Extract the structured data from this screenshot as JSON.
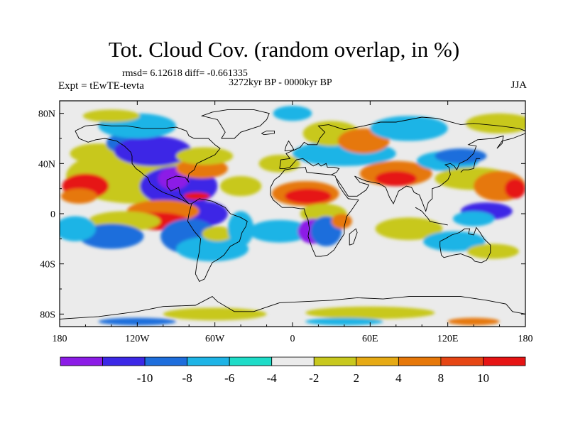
{
  "header": {
    "title": "Tot. Cloud Cov. (random overlap, in %)",
    "stats": "rmsd= 6.12618 diff= -0.661335",
    "period": "3272kyr BP - 0000kyr BP",
    "experiment": "Expt = tEwTE-tevta",
    "season": "JJA"
  },
  "map": {
    "projection": "cylindrical-equidistant",
    "lon_range": [
      -180,
      180
    ],
    "lat_range": [
      -90,
      90
    ],
    "x_ticks": [
      {
        "value": -180,
        "label": "180"
      },
      {
        "value": -120,
        "label": "120W"
      },
      {
        "value": -60,
        "label": "60W"
      },
      {
        "value": 0,
        "label": "0"
      },
      {
        "value": 60,
        "label": "60E"
      },
      {
        "value": 120,
        "label": "120E"
      },
      {
        "value": 180,
        "label": "180"
      }
    ],
    "y_ticks": [
      {
        "value": 80,
        "label": "80N"
      },
      {
        "value": 40,
        "label": "40N"
      },
      {
        "value": 0,
        "label": "0"
      },
      {
        "value": -40,
        "label": "40S"
      },
      {
        "value": -80,
        "label": "80S"
      }
    ],
    "background_color": "#ebebeb",
    "coastline_color": "#000000",
    "anomaly_regions": [
      {
        "lon": -120,
        "lat": 30,
        "rx": 55,
        "ry": 22,
        "level": "+4"
      },
      {
        "lon": -160,
        "lat": 22,
        "rx": 18,
        "ry": 10,
        "level": "+10"
      },
      {
        "lon": -165,
        "lat": 14,
        "rx": 14,
        "ry": 6,
        "level": "+8"
      },
      {
        "lon": -150,
        "lat": 48,
        "rx": 22,
        "ry": 8,
        "level": "+4"
      },
      {
        "lon": -130,
        "lat": 56,
        "rx": 14,
        "ry": 8,
        "level": "-6"
      },
      {
        "lon": -128,
        "lat": 52,
        "rx": 9,
        "ry": 5,
        "level": "-10"
      },
      {
        "lon": -108,
        "lat": 50,
        "rx": 30,
        "ry": 12,
        "level": "-8"
      },
      {
        "lon": -120,
        "lat": 70,
        "rx": 30,
        "ry": 10,
        "level": "-4"
      },
      {
        "lon": -140,
        "lat": 78,
        "rx": 22,
        "ry": 5,
        "level": "+4"
      },
      {
        "lon": -88,
        "lat": 22,
        "rx": 30,
        "ry": 16,
        "level": "-8"
      },
      {
        "lon": -92,
        "lat": 28,
        "rx": 12,
        "ry": 9,
        "level": "-10"
      },
      {
        "lon": -70,
        "lat": 36,
        "rx": 20,
        "ry": 8,
        "level": "+8"
      },
      {
        "lon": -68,
        "lat": 46,
        "rx": 22,
        "ry": 7,
        "level": "+4"
      },
      {
        "lon": -74,
        "lat": 14,
        "rx": 10,
        "ry": 3,
        "level": "+10"
      },
      {
        "lon": -68,
        "lat": 0,
        "rx": 18,
        "ry": 10,
        "level": "-8"
      },
      {
        "lon": -100,
        "lat": 2,
        "rx": 28,
        "ry": 9,
        "level": "+8"
      },
      {
        "lon": -104,
        "lat": -6,
        "rx": 24,
        "ry": 7,
        "level": "+10"
      },
      {
        "lon": -130,
        "lat": -6,
        "rx": 28,
        "ry": 8,
        "level": "+4"
      },
      {
        "lon": -140,
        "lat": -18,
        "rx": 25,
        "ry": 10,
        "level": "-6"
      },
      {
        "lon": -168,
        "lat": -12,
        "rx": 16,
        "ry": 10,
        "level": "-4"
      },
      {
        "lon": -80,
        "lat": -18,
        "rx": 22,
        "ry": 14,
        "level": "-6"
      },
      {
        "lon": -62,
        "lat": -28,
        "rx": 28,
        "ry": 10,
        "level": "-4"
      },
      {
        "lon": -58,
        "lat": -16,
        "rx": 12,
        "ry": 6,
        "level": "+4"
      },
      {
        "lon": -40,
        "lat": 22,
        "rx": 16,
        "ry": 8,
        "level": "+4"
      },
      {
        "lon": -40,
        "lat": -12,
        "rx": 10,
        "ry": 14,
        "level": "-4"
      },
      {
        "lon": -10,
        "lat": 40,
        "rx": 16,
        "ry": 7,
        "level": "+4"
      },
      {
        "lon": 10,
        "lat": 16,
        "rx": 26,
        "ry": 10,
        "level": "+8"
      },
      {
        "lon": 12,
        "lat": 14,
        "rx": 18,
        "ry": 6,
        "level": "+10"
      },
      {
        "lon": 24,
        "lat": 0,
        "rx": 18,
        "ry": 8,
        "level": "+4"
      },
      {
        "lon": -10,
        "lat": -14,
        "rx": 24,
        "ry": 9,
        "level": "-4"
      },
      {
        "lon": 16,
        "lat": -14,
        "rx": 12,
        "ry": 10,
        "level": "-10"
      },
      {
        "lon": 26,
        "lat": -14,
        "rx": 12,
        "ry": 12,
        "level": "-6"
      },
      {
        "lon": 38,
        "lat": -6,
        "rx": 8,
        "ry": 6,
        "level": "+8"
      },
      {
        "lon": 40,
        "lat": 48,
        "rx": 40,
        "ry": 10,
        "level": "-4"
      },
      {
        "lon": 30,
        "lat": 64,
        "rx": 22,
        "ry": 10,
        "level": "+4"
      },
      {
        "lon": 55,
        "lat": 58,
        "rx": 20,
        "ry": 10,
        "level": "+8"
      },
      {
        "lon": 90,
        "lat": 68,
        "rx": 30,
        "ry": 10,
        "level": "-4"
      },
      {
        "lon": 160,
        "lat": 72,
        "rx": 26,
        "ry": 8,
        "level": "+4"
      },
      {
        "lon": 0,
        "lat": 80,
        "rx": 15,
        "ry": 6,
        "level": "-4"
      },
      {
        "lon": 80,
        "lat": 32,
        "rx": 28,
        "ry": 10,
        "level": "+8"
      },
      {
        "lon": 80,
        "lat": 28,
        "rx": 16,
        "ry": 6,
        "level": "+10"
      },
      {
        "lon": 120,
        "lat": 42,
        "rx": 24,
        "ry": 8,
        "level": "-4"
      },
      {
        "lon": 140,
        "lat": 28,
        "rx": 30,
        "ry": 9,
        "level": "+4"
      },
      {
        "lon": 160,
        "lat": 22,
        "rx": 20,
        "ry": 12,
        "level": "+8"
      },
      {
        "lon": 172,
        "lat": 20,
        "rx": 8,
        "ry": 8,
        "level": "+10"
      },
      {
        "lon": 130,
        "lat": 46,
        "rx": 20,
        "ry": 6,
        "level": "-6"
      },
      {
        "lon": 150,
        "lat": 2,
        "rx": 20,
        "ry": 7,
        "level": "-8"
      },
      {
        "lon": 140,
        "lat": -4,
        "rx": 16,
        "ry": 6,
        "level": "-4"
      },
      {
        "lon": 90,
        "lat": -12,
        "rx": 26,
        "ry": 9,
        "level": "+4"
      },
      {
        "lon": 125,
        "lat": -22,
        "rx": 24,
        "ry": 8,
        "level": "-4"
      },
      {
        "lon": 155,
        "lat": -30,
        "rx": 20,
        "ry": 6,
        "level": "+4"
      },
      {
        "lon": -60,
        "lat": -80,
        "rx": 40,
        "ry": 5,
        "level": "+4"
      },
      {
        "lon": 60,
        "lat": -79,
        "rx": 50,
        "ry": 5,
        "level": "+4"
      },
      {
        "lon": -120,
        "lat": -86,
        "rx": 30,
        "ry": 3,
        "level": "-6"
      },
      {
        "lon": 40,
        "lat": -86,
        "rx": 30,
        "ry": 3,
        "level": "-4"
      },
      {
        "lon": 140,
        "lat": -86,
        "rx": 20,
        "ry": 3,
        "level": "+8"
      }
    ]
  },
  "colorbar": {
    "colors": [
      "#8c1ce6",
      "#3c28e6",
      "#1e6edc",
      "#1eb4e6",
      "#1edcc8",
      "#ebebeb",
      "#c8c81e",
      "#e6aa14",
      "#e6780a",
      "#e64614",
      "#e61414"
    ],
    "labels": [
      {
        "index": 1,
        "text": "-10"
      },
      {
        "index": 2,
        "text": "-8"
      },
      {
        "index": 3,
        "text": "-6"
      },
      {
        "index": 4,
        "text": "-4"
      },
      {
        "index": 5,
        "text": "-2"
      },
      {
        "index": 6,
        "text": "2"
      },
      {
        "index": 7,
        "text": "4"
      },
      {
        "index": 8,
        "text": "8"
      },
      {
        "index": 9,
        "text": "10"
      }
    ],
    "level_color_index": {
      "-10": 0,
      "-8": 1,
      "-6": 2,
      "-4": 3,
      "+4": 6,
      "+8": 8,
      "+10": 10
    }
  }
}
